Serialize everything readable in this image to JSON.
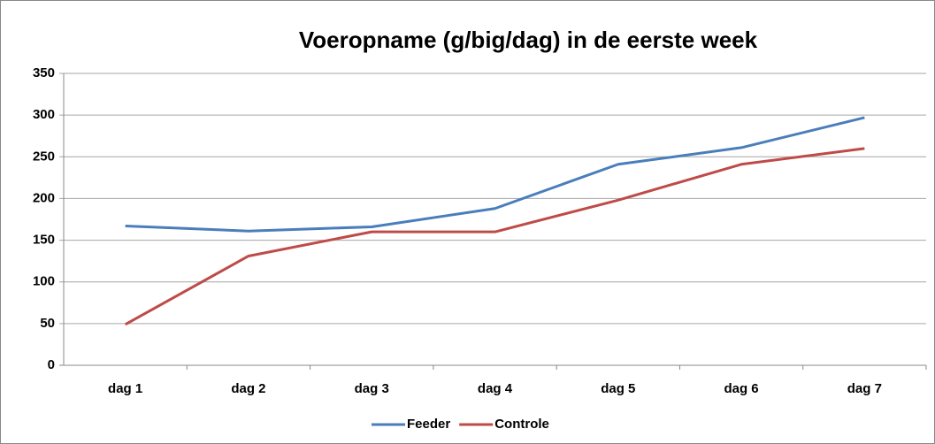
{
  "chart_data": {
    "type": "line",
    "title": "Voeropname (g/big/dag) in de eerste week",
    "categories": [
      "dag 1",
      "dag 2",
      "dag 3",
      "dag 4",
      "dag 5",
      "dag 6",
      "dag 7"
    ],
    "series": [
      {
        "name": "Feeder",
        "color": "#4a7ebb",
        "values": [
          167,
          161,
          166,
          188,
          241,
          261,
          297
        ]
      },
      {
        "name": "Controle",
        "color": "#be4b48",
        "values": [
          49,
          131,
          160,
          160,
          198,
          241,
          260
        ]
      }
    ],
    "ylim": [
      0,
      350
    ],
    "yticks": [
      0,
      50,
      100,
      150,
      200,
      250,
      300,
      350
    ],
    "grid": true,
    "legend": "bottom"
  }
}
